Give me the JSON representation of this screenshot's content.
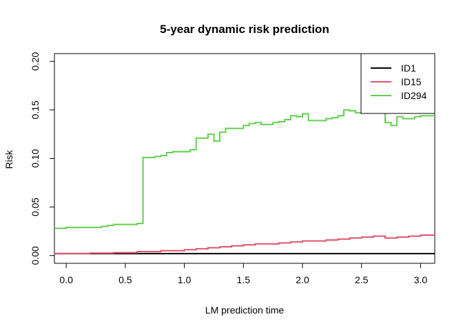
{
  "chart_data": {
    "type": "line",
    "step": true,
    "title": "5-year dynamic risk prediction",
    "xlabel": "LM prediction time",
    "ylabel": "Risk",
    "xlim": [
      -0.1,
      3.12
    ],
    "ylim": [
      -0.008,
      0.208
    ],
    "xticks": [
      0.0,
      0.5,
      1.0,
      1.5,
      2.0,
      2.5,
      3.0
    ],
    "xtick_labels": [
      "0.0",
      "0.5",
      "1.0",
      "1.5",
      "2.0",
      "2.5",
      "3.0"
    ],
    "yticks": [
      0.0,
      0.05,
      0.1,
      0.15,
      0.2
    ],
    "ytick_labels": [
      "0.00",
      "0.05",
      "0.10",
      "0.15",
      "0.20"
    ],
    "grid": false,
    "legend_position": "top-right",
    "series": [
      {
        "name": "ID1",
        "color": "#000000",
        "x": [
          -0.1,
          3.12
        ],
        "y": [
          0.002,
          0.002
        ]
      },
      {
        "name": "ID15",
        "color": "#DF536B",
        "x": [
          -0.1,
          0.2,
          0.4,
          0.6,
          0.8,
          1.0,
          1.1,
          1.2,
          1.3,
          1.4,
          1.5,
          1.6,
          1.7,
          1.8,
          1.9,
          2.0,
          2.1,
          2.2,
          2.3,
          2.4,
          2.5,
          2.6,
          2.7,
          2.8,
          2.9,
          3.0,
          3.12
        ],
        "y": [
          0.002,
          0.0025,
          0.003,
          0.004,
          0.005,
          0.006,
          0.007,
          0.008,
          0.009,
          0.01,
          0.011,
          0.012,
          0.012,
          0.013,
          0.014,
          0.015,
          0.015,
          0.016,
          0.017,
          0.018,
          0.019,
          0.02,
          0.018,
          0.019,
          0.02,
          0.021,
          0.021
        ]
      },
      {
        "name": "ID294",
        "color": "#61D04F",
        "x": [
          -0.1,
          0.0,
          0.1,
          0.2,
          0.3,
          0.35,
          0.4,
          0.5,
          0.6,
          0.65,
          0.7,
          0.75,
          0.8,
          0.85,
          0.9,
          1.0,
          1.05,
          1.1,
          1.2,
          1.25,
          1.3,
          1.35,
          1.4,
          1.5,
          1.55,
          1.6,
          1.65,
          1.7,
          1.75,
          1.8,
          1.85,
          1.9,
          1.95,
          2.0,
          2.05,
          2.1,
          2.2,
          2.25,
          2.3,
          2.35,
          2.4,
          2.45,
          2.5,
          2.55,
          2.6,
          2.65,
          2.7,
          2.75,
          2.8,
          2.85,
          2.9,
          2.95,
          3.0,
          3.12
        ],
        "y": [
          0.028,
          0.029,
          0.029,
          0.029,
          0.03,
          0.031,
          0.032,
          0.032,
          0.033,
          0.101,
          0.101,
          0.102,
          0.103,
          0.106,
          0.107,
          0.107,
          0.109,
          0.121,
          0.125,
          0.118,
          0.127,
          0.131,
          0.131,
          0.134,
          0.136,
          0.137,
          0.135,
          0.135,
          0.137,
          0.138,
          0.14,
          0.144,
          0.143,
          0.146,
          0.139,
          0.139,
          0.141,
          0.142,
          0.144,
          0.15,
          0.149,
          0.147,
          0.148,
          0.149,
          0.15,
          0.15,
          0.137,
          0.134,
          0.143,
          0.141,
          0.141,
          0.143,
          0.144,
          0.144
        ]
      }
    ]
  }
}
